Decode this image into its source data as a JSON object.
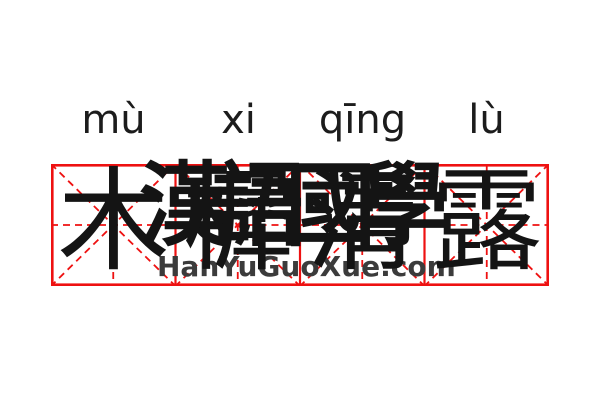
{
  "card": {
    "pinyin": [
      "mù",
      "xi",
      "qīng",
      "lù"
    ],
    "characters": [
      "木",
      "樨",
      "清",
      "露"
    ]
  },
  "watermark": {
    "hanzi": "漢語國學",
    "site": "HanYuGuoXue.com"
  },
  "colors": {
    "background": "#ffffff",
    "grid_red": "#ee1111",
    "ink": "#141414",
    "pinyin_text": "#1c1c1c",
    "watermark_text": "#3b3b3b"
  }
}
